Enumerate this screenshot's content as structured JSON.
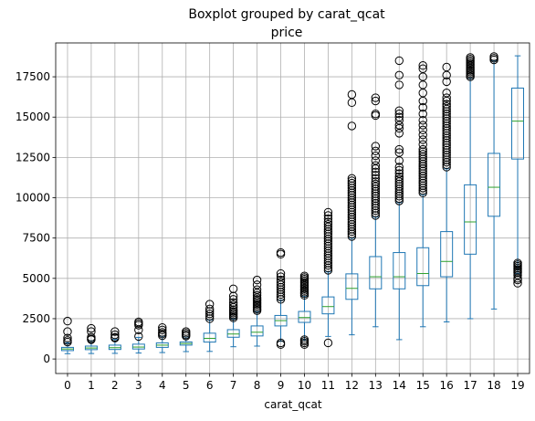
{
  "chart_data": {
    "type": "boxplot",
    "title": "Boxplot grouped by carat_qcat",
    "subtitle": "price",
    "xlabel": "carat_qcat",
    "ylabel": "",
    "categories": [
      "0",
      "1",
      "2",
      "3",
      "4",
      "5",
      "6",
      "7",
      "8",
      "9",
      "10",
      "11",
      "12",
      "13",
      "14",
      "15",
      "16",
      "17",
      "18",
      "19"
    ],
    "ylim": [
      -900,
      19600
    ],
    "yticks": [
      0,
      2500,
      5000,
      7500,
      10000,
      12500,
      15000,
      17500
    ],
    "grid": true,
    "colors": {
      "box": "#1f77b4",
      "median": "#2ca02c",
      "outlier": "#000000",
      "grid": "#b0b0b0"
    },
    "boxes": [
      {
        "whisker_low": 330,
        "q1": 520,
        "median": 620,
        "q3": 720,
        "whisker_high": 1000,
        "outliers": [
          1050,
          1150,
          1300,
          1700,
          2350
        ]
      },
      {
        "whisker_low": 340,
        "q1": 580,
        "median": 680,
        "q3": 800,
        "whisker_high": 1130,
        "outliers": [
          1200,
          1250,
          1350,
          1700,
          1900
        ]
      },
      {
        "whisker_low": 350,
        "q1": 590,
        "median": 700,
        "q3": 860,
        "whisker_high": 1220,
        "outliers": [
          1300,
          1350,
          1500,
          1700
        ]
      },
      {
        "whisker_low": 370,
        "q1": 620,
        "median": 740,
        "q3": 920,
        "whisker_high": 1340,
        "outliers": [
          1400,
          1800,
          2100,
          2200,
          2300
        ]
      },
      {
        "whisker_low": 400,
        "q1": 720,
        "median": 860,
        "q3": 1000,
        "whisker_high": 1410,
        "outliers": [
          1450,
          1550,
          1650,
          1800,
          1950
        ]
      },
      {
        "whisker_low": 460,
        "q1": 860,
        "median": 960,
        "q3": 1060,
        "whisker_high": 1370,
        "outliers": [
          1420,
          1500,
          1600,
          1700
        ]
      },
      {
        "whisker_low": 470,
        "q1": 1050,
        "median": 1280,
        "q3": 1600,
        "whisker_high": 2420,
        "outliers": [
          2500,
          2650,
          2800,
          2950,
          3100,
          3400
        ]
      },
      {
        "whisker_low": 760,
        "q1": 1350,
        "median": 1550,
        "q3": 1820,
        "whisker_high": 2500,
        "outliers": [
          2550,
          2650,
          2750,
          2850,
          2950,
          3050,
          3200,
          3350,
          3500,
          3700,
          3900,
          4350
        ]
      },
      {
        "whisker_low": 800,
        "q1": 1430,
        "median": 1660,
        "q3": 2050,
        "whisker_high": 2950,
        "outliers": [
          3000,
          3100,
          3200,
          3300,
          3400,
          3500,
          3600,
          3700,
          3800,
          3950,
          4100,
          4300,
          4600,
          4900
        ]
      },
      {
        "whisker_low": 1100,
        "q1": 2050,
        "median": 2380,
        "q3": 2700,
        "whisker_high": 3650,
        "outliers": [
          900,
          1000,
          3700,
          3850,
          4000,
          4150,
          4300,
          4450,
          4600,
          4750,
          4900,
          5100,
          5300,
          6500,
          6600
        ]
      },
      {
        "whisker_low": 1200,
        "q1": 2270,
        "median": 2570,
        "q3": 2950,
        "whisker_high": 3900,
        "outliers": [
          900,
          1000,
          1100,
          1200,
          3950,
          4050,
          4150,
          4250,
          4350,
          4450,
          4550,
          4650,
          4750,
          4850,
          4950,
          5050,
          5150
        ]
      },
      {
        "whisker_low": 1400,
        "q1": 2800,
        "median": 3250,
        "q3": 3850,
        "whisker_high": 5400,
        "outliers": [
          1000,
          5500,
          5650,
          5800,
          5950,
          6100,
          6250,
          6400,
          6550,
          6700,
          6850,
          7000,
          7150,
          7300,
          7450,
          7600,
          7750,
          7900,
          8050,
          8200,
          8350,
          8500,
          8700,
          8900,
          9100
        ]
      },
      {
        "whisker_low": 1500,
        "q1": 3700,
        "median": 4380,
        "q3": 5280,
        "whisker_high": 7500,
        "outliers": [
          7600,
          7750,
          7900,
          8050,
          8200,
          8350,
          8500,
          8650,
          8800,
          8950,
          9100,
          9250,
          9400,
          9550,
          9700,
          9850,
          10000,
          10150,
          10300,
          10450,
          10600,
          10750,
          10900,
          11050,
          11200,
          14450,
          15900,
          16400
        ]
      },
      {
        "whisker_low": 2000,
        "q1": 4350,
        "median": 5100,
        "q3": 6350,
        "whisker_high": 8800,
        "outliers": [
          8900,
          9050,
          9200,
          9350,
          9500,
          9650,
          9800,
          9950,
          10100,
          10250,
          10400,
          10550,
          10700,
          10850,
          11000,
          11200,
          11400,
          11600,
          11800,
          12000,
          12300,
          12600,
          12900,
          13200,
          15100,
          15200,
          16000,
          16200
        ]
      },
      {
        "whisker_low": 1200,
        "q1": 4350,
        "median": 5100,
        "q3": 6600,
        "whisker_high": 9700,
        "outliers": [
          9800,
          9950,
          10100,
          10250,
          10400,
          10550,
          10700,
          10850,
          11000,
          11150,
          11300,
          11500,
          11700,
          11900,
          12300,
          12800,
          13000,
          14000,
          14300,
          14500,
          14800,
          15000,
          15200,
          15400,
          17000,
          17600,
          18500
        ]
      },
      {
        "whisker_low": 2000,
        "q1": 4550,
        "median": 5300,
        "q3": 6900,
        "whisker_high": 10200,
        "outliers": [
          10300,
          10450,
          10600,
          10750,
          10900,
          11050,
          11200,
          11350,
          11500,
          11650,
          11800,
          11950,
          12100,
          12250,
          12400,
          12550,
          12700,
          12850,
          13000,
          13300,
          13600,
          13900,
          14200,
          14500,
          14800,
          15200,
          15600,
          16000,
          16500,
          17000,
          17500,
          18000,
          18200
        ]
      },
      {
        "whisker_low": 2300,
        "q1": 5100,
        "median": 6050,
        "q3": 7900,
        "whisker_high": 11800,
        "outliers": [
          11900,
          12050,
          12200,
          12350,
          12500,
          12650,
          12800,
          12950,
          13100,
          13250,
          13400,
          13550,
          13700,
          13850,
          14000,
          14150,
          14300,
          14450,
          14600,
          14750,
          14900,
          15050,
          15200,
          15350,
          15500,
          15650,
          15800,
          16000,
          16200,
          16500,
          17200,
          17600,
          18100
        ]
      },
      {
        "whisker_low": 2500,
        "q1": 6500,
        "median": 8500,
        "q3": 10800,
        "whisker_high": 17400,
        "outliers": [
          17500,
          17600,
          17700,
          17800,
          17900,
          18000,
          18100,
          18200,
          18300,
          18400,
          18500,
          18600,
          18700
        ]
      },
      {
        "whisker_low": 3100,
        "q1": 8850,
        "median": 10650,
        "q3": 12750,
        "whisker_high": 18500,
        "outliers": [
          18550,
          18650,
          18750
        ]
      },
      {
        "whisker_low": 5300,
        "q1": 12400,
        "median": 14750,
        "q3": 16800,
        "whisker_high": 18800,
        "outliers": [
          4700,
          4900,
          5000,
          5200,
          5350,
          5450,
          5550,
          5650,
          5750,
          5850,
          5950
        ]
      }
    ]
  }
}
